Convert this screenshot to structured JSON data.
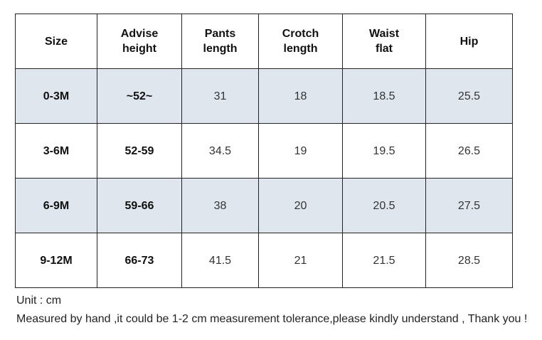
{
  "table": {
    "header": [
      "Size",
      "Advise\nheight",
      "Pants\nlength",
      "Crotch\nlength",
      "Waist\nflat",
      "Hip"
    ],
    "rows": [
      [
        "0-3M",
        "~52~",
        "31",
        "18",
        "18.5",
        "25.5"
      ],
      [
        "3-6M",
        "52-59",
        "34.5",
        "19",
        "19.5",
        "26.5"
      ],
      [
        "6-9M",
        "59-66",
        "38",
        "20",
        "20.5",
        "27.5"
      ],
      [
        "9-12M",
        "66-73",
        "41.5",
        "21",
        "21.5",
        "28.5"
      ]
    ]
  },
  "notes": [
    "Unit : cm",
    "Measured by hand ,it could be 1-2 cm measurement tolerance,please kindly understand , Thank you !"
  ]
}
